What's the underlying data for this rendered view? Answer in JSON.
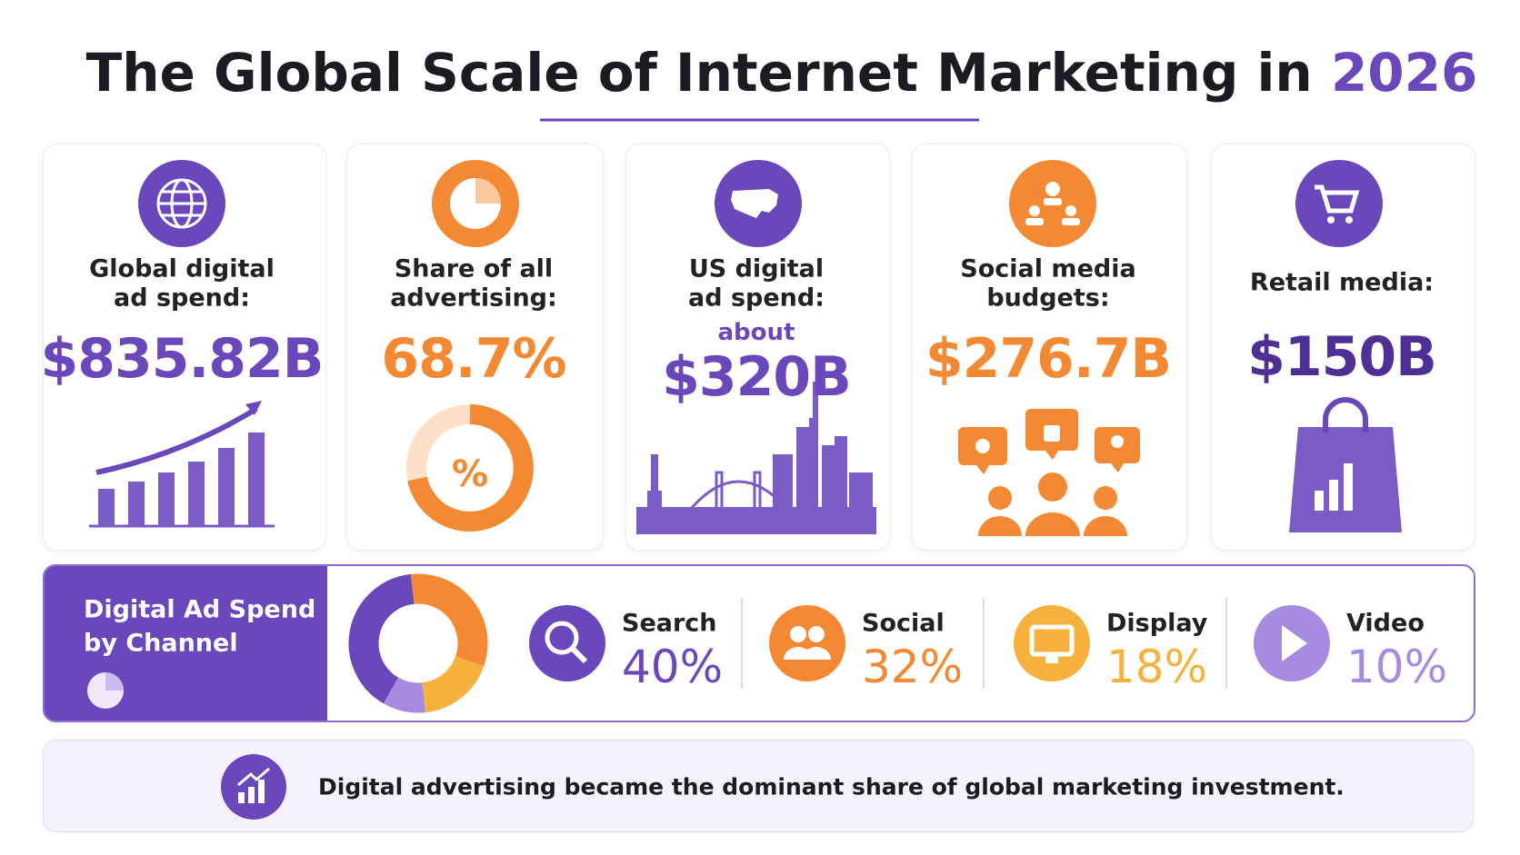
{
  "header": {
    "title": "The Global Scale of Internet Marketing in",
    "highlight": "2026"
  },
  "cards": [
    {
      "label": [
        "Global digital",
        "ad spend:"
      ],
      "value": "$835.82B"
    },
    {
      "label": [
        "Share of all",
        "advertising:"
      ],
      "value": "68.7%",
      "badge": "%"
    },
    {
      "label": [
        "US digital",
        "ad spend:"
      ],
      "qualifier": "about",
      "value": "$320B"
    },
    {
      "label": [
        "Social media",
        "budgets:"
      ],
      "value": "$276.7B"
    },
    {
      "label": [
        "Retail media:"
      ],
      "value": "$150B"
    }
  ],
  "channels": {
    "title": [
      "Digital Ad Spend",
      "by Channel"
    ],
    "items": [
      {
        "name": "Search",
        "value": 40,
        "label": "40%",
        "color": "#6a48bb"
      },
      {
        "name": "Social",
        "value": 32,
        "label": "32%",
        "color": "#f38a33"
      },
      {
        "name": "Display",
        "value": 18,
        "label": "18%",
        "color": "#f6b23d"
      },
      {
        "name": "Video",
        "value": 10,
        "label": "10%",
        "color": "#a78be0"
      }
    ]
  },
  "footer": {
    "text": "Digital advertising became the dominant share of global marketing investment."
  }
}
